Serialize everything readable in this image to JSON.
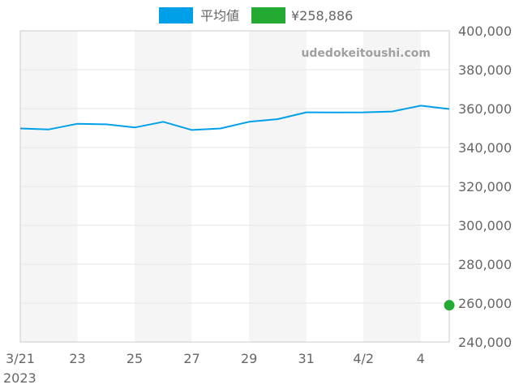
{
  "chart_data": {
    "type": "line",
    "watermark": "udedokeitoushi.com",
    "legend": {
      "placement": "top-center",
      "items": [
        {
          "label": "平均値",
          "color": "#00a0e9"
        },
        {
          "label": "¥258,886",
          "color": "#22aa33"
        }
      ]
    },
    "x": [
      "2023-03-21",
      "2023-03-22",
      "2023-03-23",
      "2023-03-24",
      "2023-03-25",
      "2023-03-26",
      "2023-03-27",
      "2023-03-28",
      "2023-03-29",
      "2023-03-30",
      "2023-03-31",
      "2023-04-01",
      "2023-04-02",
      "2023-04-03",
      "2023-04-04",
      "2023-04-05"
    ],
    "x_tick_labels": [
      "3/21",
      "23",
      "25",
      "27",
      "29",
      "31",
      "4/2",
      "4"
    ],
    "x_tick_dates": [
      "2023-03-21",
      "2023-03-23",
      "2023-03-25",
      "2023-03-27",
      "2023-03-29",
      "2023-03-31",
      "2023-04-02",
      "2023-04-04"
    ],
    "x_year_label": "2023",
    "y_tick_labels": [
      "400,000",
      "380,000",
      "360,000",
      "340,000",
      "320,000",
      "300,000",
      "280,000",
      "260,000",
      "240,000"
    ],
    "ylim": [
      240000,
      400000
    ],
    "xlim": [
      "2023-03-21",
      "2023-04-05"
    ],
    "series": [
      {
        "name": "平均値",
        "color": "#00a0e9",
        "values": [
          349800,
          349300,
          352200,
          351900,
          350300,
          353200,
          349000,
          349800,
          353200,
          354600,
          358100,
          358000,
          358100,
          358500,
          361500,
          359800
        ]
      }
    ],
    "points": [
      {
        "name": "¥258,886",
        "color": "#22aa33",
        "x": "2023-04-05",
        "y": 258886
      }
    ]
  }
}
